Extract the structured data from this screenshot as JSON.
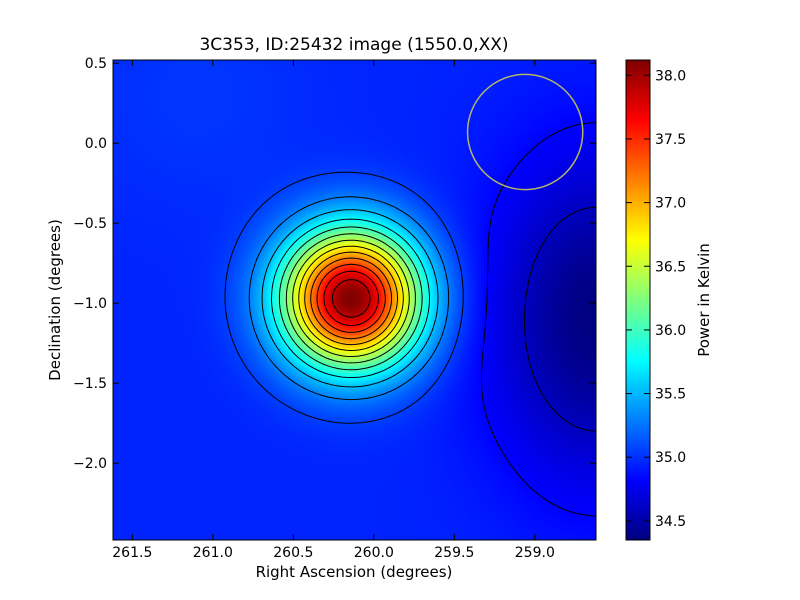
{
  "chart_data": {
    "type": "heatmap",
    "title": "3C353, ID:25432 image (1550.0,XX)",
    "xlabel": "Right Ascension (degrees)",
    "ylabel": "Declination (degrees)",
    "xlim": [
      261.62,
      258.62
    ],
    "ylim": [
      -2.48,
      0.52
    ],
    "x_inverted": true,
    "x_ticks": [
      "261.5",
      "261.0",
      "260.5",
      "260.0",
      "259.5",
      "259.0"
    ],
    "x_tick_values": [
      261.5,
      261.0,
      260.5,
      260.0,
      259.5,
      259.0
    ],
    "y_ticks": [
      "0.5",
      "0.0",
      "−0.5",
      "−1.0",
      "−1.5",
      "−2.0"
    ],
    "y_tick_values": [
      0.5,
      0.0,
      -0.5,
      -1.0,
      -1.5,
      -2.0
    ],
    "colormap": "jet",
    "colorbar": {
      "label": "Power in Kelvin",
      "range": [
        34.35,
        38.12
      ],
      "ticks": [
        "34.5",
        "35.0",
        "35.5",
        "36.0",
        "36.5",
        "37.0",
        "37.5",
        "38.0"
      ],
      "tick_values": [
        34.5,
        35.0,
        35.5,
        36.0,
        36.5,
        37.0,
        37.5,
        38.0
      ],
      "stops": [
        "#00007f",
        "#0000ff",
        "#007fff",
        "#00ffff",
        "#7fff7f",
        "#ffff00",
        "#ff7f00",
        "#ff0000",
        "#7f0000"
      ]
    },
    "source": {
      "ra": 260.14,
      "dec": -0.97,
      "peak": 38.12
    },
    "background_level": 34.95,
    "minimum": {
      "ra": 258.62,
      "dec": -1.1,
      "value": 34.35
    },
    "contour_count": 15,
    "beam_circle": {
      "ra": 259.06,
      "dec": 0.07,
      "radius_deg": 0.36,
      "color": "#b5b56a"
    },
    "grid": false,
    "legend": "none"
  }
}
